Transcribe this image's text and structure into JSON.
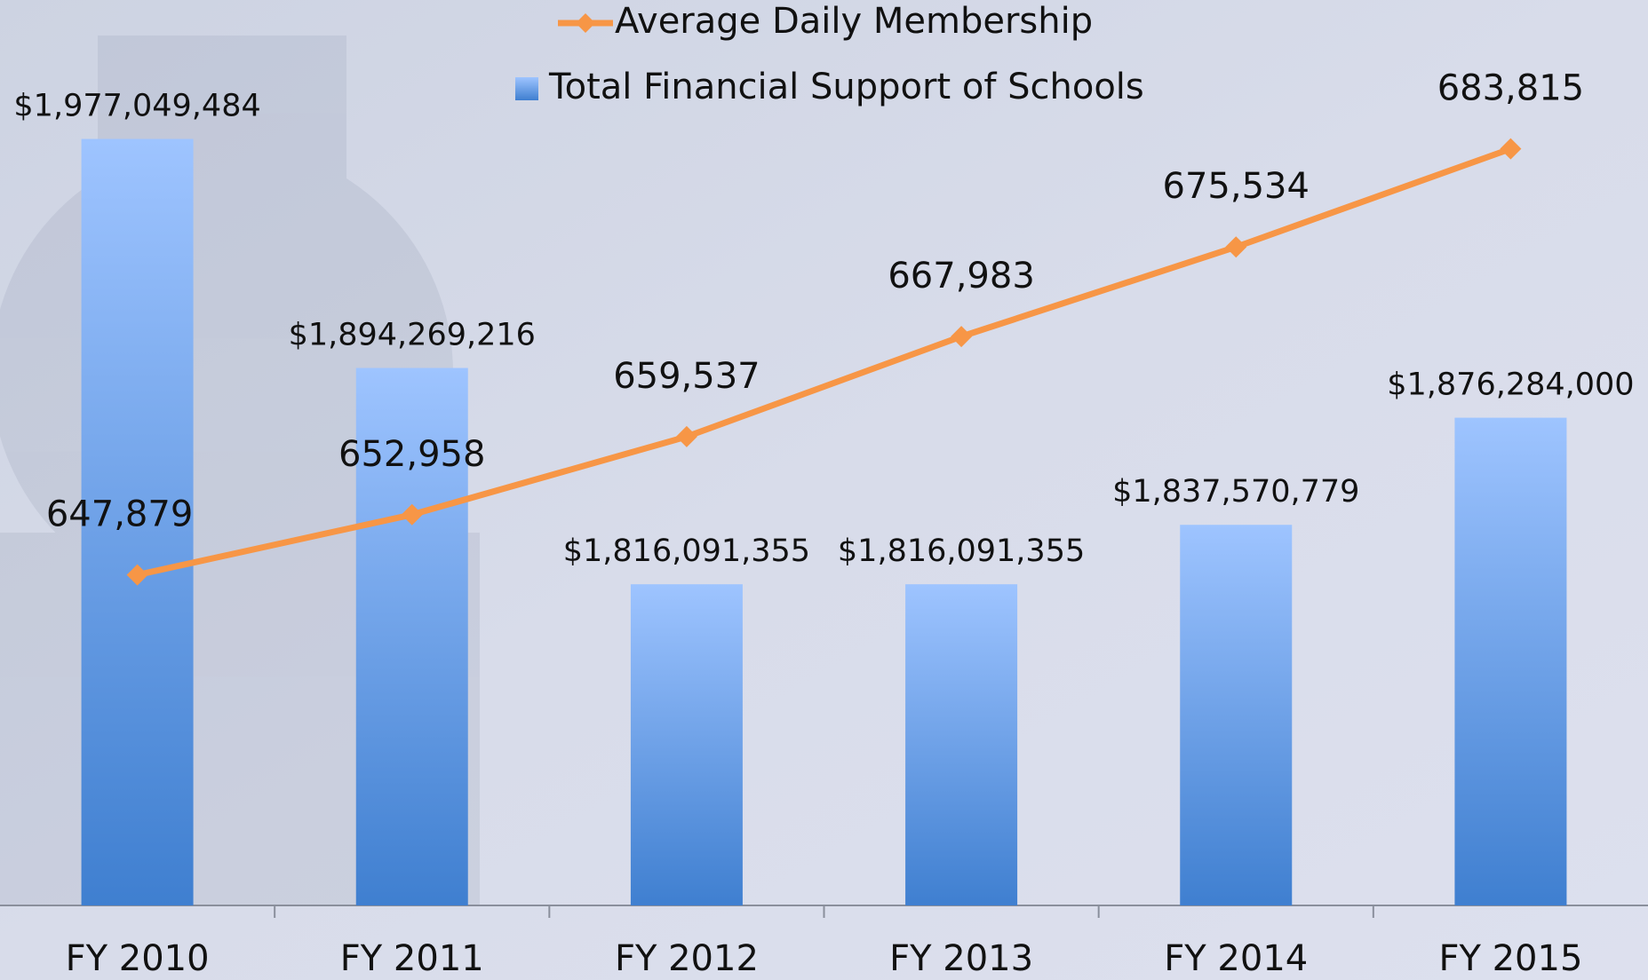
{
  "chart_data": {
    "type": "bar",
    "categories": [
      "FY 2010",
      "FY 2011",
      "FY 2012",
      "FY 2013",
      "FY 2014",
      "FY 2015"
    ],
    "series": [
      {
        "name": "Total Financial Support of Schools",
        "type": "bar",
        "color": "#5b93e0",
        "values": [
          1977049484,
          1894269216,
          1816091355,
          1816091355,
          1837570779,
          1876284000
        ],
        "value_labels": [
          "$1,977,049,484",
          "$1,894,269,216",
          "$1,816,091,355",
          "$1,816,091,355",
          "$1,837,570,779",
          "$1,876,284,000"
        ]
      },
      {
        "name": "Average Daily Membership",
        "type": "line",
        "axis": "y2",
        "color": "#f79646",
        "values": [
          647879,
          652958,
          659537,
          667983,
          675534,
          683815
        ],
        "value_labels": [
          "647,879",
          "652,958",
          "659,537",
          "667,983",
          "675,534",
          "683,815"
        ]
      }
    ],
    "ylim": [
      1700000000,
      2000000000
    ],
    "y2lim": [
      620000,
      690000
    ]
  }
}
